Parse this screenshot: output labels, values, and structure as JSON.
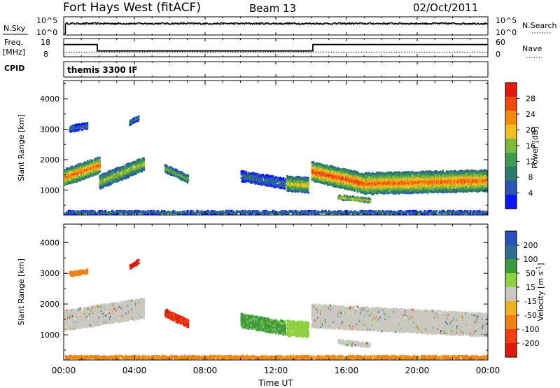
{
  "header": {
    "station": "Fort Hays West (fitACF)",
    "beam": "Beam 13",
    "date": "02/Oct/2011"
  },
  "top_panels": {
    "nsky_label": "N.Sky",
    "nsearch_label": "N.Search",
    "nsky_ticks": [
      "10^5",
      "10^0"
    ],
    "nsearch_ticks": [
      "10^5",
      "10^0"
    ],
    "freq_label_1": "Freq.",
    "freq_label_2": "[MHz]",
    "freq_ticks": [
      "18",
      "8"
    ],
    "nave_label": "Nave",
    "nave_ticks": [
      "60",
      "0"
    ],
    "cpid_label": "CPID",
    "cpid_text": "themis 3300 IF"
  },
  "x_axis": {
    "label": "Time UT",
    "ticks": [
      "00:00",
      "04:00",
      "08:00",
      "12:00",
      "16:00",
      "20:00",
      "00:00"
    ]
  },
  "colors": {
    "power_scale": [
      "#0a14ff",
      "#2a55b8",
      "#2e7a6a",
      "#3e9a4e",
      "#7fb83a",
      "#f0c020",
      "#f58a10",
      "#f04a0a",
      "#e41a0a"
    ],
    "velocity_scale": [
      "#2a4fbf",
      "#2e6e8a",
      "#3e9a3e",
      "#8fd040",
      "#c8c8c0",
      "#f0b020",
      "#f08010",
      "#f04010",
      "#e01a0a"
    ]
  },
  "chart_data": [
    {
      "type": "heatmap",
      "title": "Power",
      "ylabel": "Slant Range [km]",
      "xlabel": "Time UT",
      "x_range_hours": [
        0,
        24
      ],
      "ylim": [
        180,
        4600
      ],
      "y_ticks": [
        1000,
        2000,
        3000,
        4000
      ],
      "colorbar": {
        "label": "Power [dB]",
        "ticks": [
          4,
          8,
          12,
          16,
          20,
          24,
          28
        ],
        "range": [
          0,
          32
        ]
      },
      "echo_bands": [
        {
          "t_start": 0.0,
          "t_end": 2.0,
          "range_center_start": 1450,
          "range_center_end": 1850,
          "width_km": 550,
          "peak_db": 26
        },
        {
          "t_start": 2.0,
          "t_end": 4.5,
          "range_center_start": 1300,
          "range_center_end": 1900,
          "width_km": 450,
          "peak_db": 18
        },
        {
          "t_start": 0.3,
          "t_end": 1.3,
          "range_center_start": 3050,
          "range_center_end": 3150,
          "width_km": 200,
          "peak_db": 8
        },
        {
          "t_start": 3.7,
          "t_end": 4.2,
          "range_center_start": 3250,
          "range_center_end": 3400,
          "width_km": 150,
          "peak_db": 10
        },
        {
          "t_start": 5.7,
          "t_end": 7.0,
          "range_center_start": 1750,
          "range_center_end": 1400,
          "width_km": 250,
          "peak_db": 16
        },
        {
          "t_start": 10.0,
          "t_end": 12.5,
          "range_center_start": 1500,
          "range_center_end": 1250,
          "width_km": 350,
          "peak_db": 8
        },
        {
          "t_start": 12.6,
          "t_end": 13.8,
          "range_center_start": 1250,
          "range_center_end": 1200,
          "width_km": 500,
          "peak_db": 20
        },
        {
          "t_start": 14.0,
          "t_end": 17.0,
          "range_center_start": 1650,
          "range_center_end": 1250,
          "width_km": 650,
          "peak_db": 28
        },
        {
          "t_start": 17.0,
          "t_end": 24.0,
          "range_center_start": 1250,
          "range_center_end": 1350,
          "width_km": 700,
          "peak_db": 26
        },
        {
          "t_start": 15.5,
          "t_end": 17.3,
          "range_center_start": 800,
          "range_center_end": 700,
          "width_km": 150,
          "peak_db": 22
        },
        {
          "t_start": 0.0,
          "t_end": 24.0,
          "range_center_start": 300,
          "range_center_end": 300,
          "width_km": 100,
          "peak_db": 10
        }
      ]
    },
    {
      "type": "heatmap",
      "title": "Velocity",
      "ylabel": "Slant Range [km]",
      "xlabel": "Time UT",
      "x_range_hours": [
        0,
        24
      ],
      "ylim": [
        180,
        4600
      ],
      "y_ticks": [
        1000,
        2000,
        3000,
        4000
      ],
      "colorbar": {
        "label": "Velocity [m s^-1]",
        "ticks": [
          200,
          100,
          50,
          15,
          -15,
          -50,
          -100,
          -200
        ],
        "range": [
          -250,
          250
        ]
      },
      "echo_bands": [
        {
          "t_start": 0.0,
          "t_end": 4.5,
          "range_center_start": 1500,
          "range_center_end": 1900,
          "width_km": 650,
          "velocity": 0
        },
        {
          "t_start": 0.3,
          "t_end": 1.3,
          "range_center_start": 3000,
          "range_center_end": 3100,
          "width_km": 150,
          "velocity": -80
        },
        {
          "t_start": 3.7,
          "t_end": 4.2,
          "range_center_start": 3250,
          "range_center_end": 3400,
          "width_km": 150,
          "velocity": -220
        },
        {
          "t_start": 5.7,
          "t_end": 7.0,
          "range_center_start": 1750,
          "range_center_end": 1400,
          "width_km": 250,
          "velocity": -200
        },
        {
          "t_start": 10.0,
          "t_end": 12.5,
          "range_center_start": 1500,
          "range_center_end": 1250,
          "width_km": 450,
          "velocity": 60
        },
        {
          "t_start": 12.6,
          "t_end": 13.8,
          "range_center_start": 1250,
          "range_center_end": 1200,
          "width_km": 500,
          "velocity": 30
        },
        {
          "t_start": 14.0,
          "t_end": 24.0,
          "range_center_start": 1650,
          "range_center_end": 1350,
          "width_km": 750,
          "velocity": 0
        },
        {
          "t_start": 15.5,
          "t_end": 17.3,
          "range_center_start": 800,
          "range_center_end": 700,
          "width_km": 150,
          "velocity": 0
        },
        {
          "t_start": 0.0,
          "t_end": 24.0,
          "range_center_start": 300,
          "range_center_end": 300,
          "width_km": 100,
          "velocity": -60
        }
      ]
    },
    {
      "type": "line",
      "title": "N.Sky / N.Search",
      "x_range_hours": [
        0,
        24
      ],
      "segments": [
        {
          "t_start": 0.0,
          "t_end": 0.1,
          "nsky_log10": 0.0
        },
        {
          "t_start": 0.1,
          "t_end": 24.0,
          "nsky_log10": 3.3
        }
      ]
    },
    {
      "type": "line",
      "title": "Freq. / Nave",
      "x_range_hours": [
        0,
        24
      ],
      "freq_segments": [
        {
          "t_start": 0.0,
          "t_end": 1.9,
          "freq_mhz": 14.7
        },
        {
          "t_start": 1.9,
          "t_end": 14.1,
          "freq_mhz": 11.2
        },
        {
          "t_start": 14.1,
          "t_end": 24.0,
          "freq_mhz": 14.7
        }
      ],
      "nave_segments": [
        {
          "t_start": 0.0,
          "t_end": 24.0,
          "nave": 15
        }
      ]
    }
  ]
}
